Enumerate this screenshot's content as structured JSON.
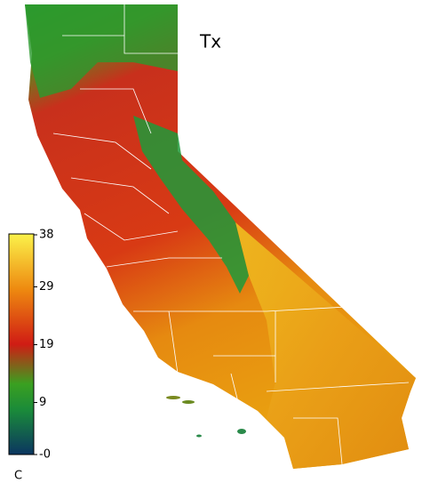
{
  "chart_data": {
    "type": "colormap",
    "title": "Tx",
    "colorbar": {
      "label": "C",
      "clim": [
        0,
        38
      ],
      "ticks": [
        38,
        29,
        19,
        9,
        {
          "value": 0,
          "label": "-0"
        }
      ]
    }
  }
}
